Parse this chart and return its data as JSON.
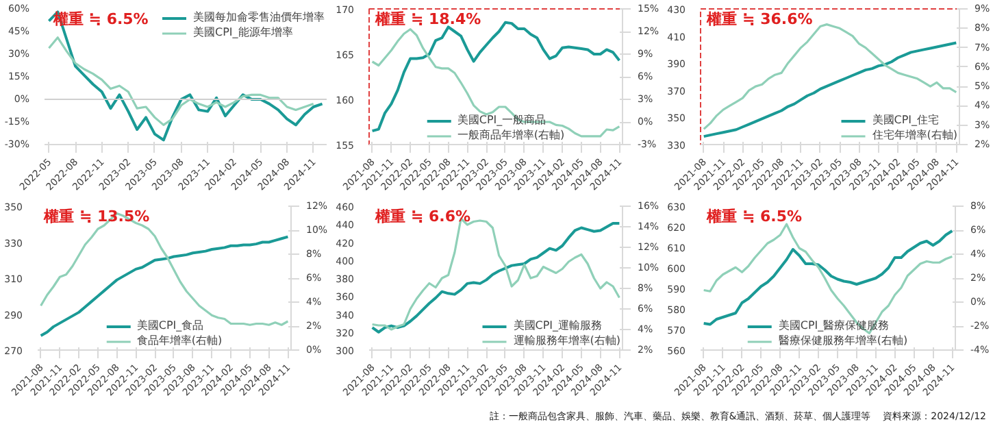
{
  "chart_data": [
    {
      "type": "line",
      "title": "權重 ≒ 6.5%",
      "categories": [
        "2022-05",
        null,
        null,
        "2022-08",
        null,
        null,
        "2022-11",
        null,
        null,
        "2023-02",
        null,
        null,
        "2023-05",
        null,
        null,
        "2023-08",
        null,
        null,
        "2023-11",
        null,
        null,
        "2024-02",
        null,
        null,
        "2024-05",
        null,
        null,
        "2024-08",
        null,
        null,
        "2024-11",
        null
      ],
      "series": [
        {
          "name": "美國每加侖零售油價年增率",
          "color": "#1a9a96",
          "values": [
            52,
            58,
            40,
            22,
            16,
            10,
            5,
            -6,
            3,
            -8,
            -20,
            -12,
            -23,
            -27,
            -12,
            0,
            3,
            -7,
            -8,
            1,
            -11,
            -4,
            3,
            0,
            0,
            -3,
            -7,
            -13,
            -17,
            -10,
            -5,
            -3
          ]
        },
        {
          "name": "美國CPI_能源年增率",
          "color": "#8fd0b8",
          "values": [
            34,
            41,
            32,
            24,
            20,
            17,
            13,
            7,
            9,
            5,
            -6,
            -5,
            -12,
            -17,
            -13,
            -4,
            0,
            -3,
            -5,
            -2,
            -5,
            -2,
            2,
            3,
            3,
            1,
            1,
            -5,
            -7,
            -5,
            -3,
            null
          ]
        }
      ],
      "ylim": [
        -30,
        60
      ],
      "yticks": [
        {
          "value": -30,
          "label": "-30%"
        },
        {
          "value": -15,
          "label": "-15%"
        },
        {
          "value": 0,
          "label": "0%"
        },
        {
          "value": 15,
          "label": "15%"
        },
        {
          "value": 30,
          "label": "30%"
        },
        {
          "value": 45,
          "label": "45%"
        },
        {
          "value": 60,
          "label": "60%"
        }
      ],
      "ref_lines": [
        {
          "axis": "y",
          "value": 0,
          "color": "#d0d0d0"
        }
      ],
      "legend": "top right"
    },
    {
      "type": "line",
      "title": "權重 ≒ 18.4%",
      "categories": [
        "2021-08",
        null,
        null,
        "2021-11",
        null,
        null,
        "2022-02",
        null,
        null,
        "2022-05",
        null,
        null,
        "2022-08",
        null,
        null,
        "2022-11",
        null,
        null,
        "2023-02",
        null,
        null,
        "2023-05",
        null,
        null,
        "2023-08",
        null,
        null,
        "2023-11",
        null,
        null,
        "2024-02",
        null,
        null,
        "2024-05",
        null,
        null,
        "2024-08",
        null,
        null,
        "2024-11"
      ],
      "series": [
        {
          "name": "美國CPI_一般商品",
          "color": "#1a9a96",
          "values": [
            156.5,
            156.7,
            158.5,
            159.5,
            161,
            163,
            164.5,
            164.5,
            164.6,
            165,
            166.5,
            166.8,
            168,
            167.5,
            167,
            165.5,
            164.2,
            165.2,
            166,
            166.8,
            167.5,
            168.5,
            168.4,
            167.8,
            167.8,
            167.2,
            166.8,
            165.5,
            164.5,
            164.8,
            165.7,
            165.8,
            165.7,
            165.6,
            165.5,
            165,
            165,
            165.5,
            165.2,
            164.3
          ]
        },
        {
          "name": "一般商品年增率(右軸)",
          "color": "#8fd0b8",
          "axis": "y2",
          "values": [
            8,
            7.5,
            8.5,
            9.5,
            10.7,
            11.7,
            12.3,
            11.5,
            9.8,
            8.5,
            7.3,
            7.1,
            7.1,
            6.5,
            5.2,
            3.8,
            2.2,
            1.4,
            1.0,
            1.3,
            2.0,
            2.0,
            1.2,
            0.3,
            0,
            0,
            0,
            0,
            0,
            -0.4,
            -0.5,
            -0.9,
            -1.5,
            -1.9,
            -1.9,
            -1.9,
            -1.9,
            -1,
            -1.1,
            -0.6
          ]
        }
      ],
      "ylim": [
        155,
        170
      ],
      "yticks": [
        155,
        160,
        165,
        170
      ],
      "y2lim": [
        -3,
        15
      ],
      "y2ticks": [
        {
          "value": -3,
          "label": "-3%"
        },
        {
          "value": 0,
          "label": "0%"
        },
        {
          "value": 3,
          "label": "3%"
        },
        {
          "value": 6,
          "label": "6%"
        },
        {
          "value": 9,
          "label": "9%"
        },
        {
          "value": 12,
          "label": "12%"
        },
        {
          "value": 15,
          "label": "15%"
        }
      ],
      "legend": "bottom"
    },
    {
      "type": "line",
      "title": "權重 ≒ 36.6%",
      "categories": [
        "2021-08",
        null,
        null,
        "2021-11",
        null,
        null,
        "2022-02",
        null,
        null,
        "2022-05",
        null,
        null,
        "2022-08",
        null,
        null,
        "2022-11",
        null,
        null,
        "2023-02",
        null,
        null,
        "2023-05",
        null,
        null,
        "2023-08",
        null,
        null,
        "2023-11",
        null,
        null,
        "2024-02",
        null,
        null,
        "2024-05",
        null,
        null,
        "2024-08",
        null,
        null,
        "2024-11"
      ],
      "series": [
        {
          "name": "美國CPI_住宅",
          "color": "#1a9a96",
          "values": [
            336,
            337,
            338,
            339,
            340,
            341,
            343,
            345,
            347,
            349,
            351,
            353,
            355,
            358,
            360,
            363,
            366,
            368,
            371,
            373,
            375,
            377,
            379,
            381,
            383,
            385,
            386,
            388,
            389,
            391,
            394,
            396,
            398,
            399,
            400,
            401,
            402,
            403,
            404,
            405
          ]
        },
        {
          "name": "住宅年增率(右軸)",
          "color": "#8fd0b8",
          "axis": "y2",
          "values": [
            2.8,
            3.1,
            3.5,
            3.8,
            4.0,
            4.2,
            4.4,
            4.8,
            5.0,
            5.1,
            5.4,
            5.6,
            5.7,
            6.2,
            6.6,
            7.0,
            7.3,
            7.7,
            8.1,
            8.2,
            8.1,
            8.0,
            7.8,
            7.6,
            7.2,
            7.0,
            6.7,
            6.4,
            6.1,
            5.9,
            5.7,
            5.6,
            5.5,
            5.4,
            5.2,
            5.0,
            5.2,
            4.9,
            4.9,
            4.7
          ]
        }
      ],
      "ylim": [
        330,
        430
      ],
      "yticks": [
        330,
        350,
        370,
        390,
        410,
        430
      ],
      "y2lim": [
        2,
        9
      ],
      "y2ticks": [
        {
          "value": 2,
          "label": "2%"
        },
        {
          "value": 3,
          "label": "3%"
        },
        {
          "value": 4,
          "label": "4%"
        },
        {
          "value": 5,
          "label": "5%"
        },
        {
          "value": 6,
          "label": "6%"
        },
        {
          "value": 7,
          "label": "7%"
        },
        {
          "value": 8,
          "label": "8%"
        },
        {
          "value": 9,
          "label": "9%"
        }
      ],
      "legend": "bottom right"
    },
    {
      "type": "line",
      "title": "權重 ≒ 13.5%",
      "categories": [
        "2021-08",
        null,
        null,
        "2021-11",
        null,
        null,
        "2022-02",
        null,
        null,
        "2022-05",
        null,
        null,
        "2022-08",
        null,
        null,
        "2022-11",
        null,
        null,
        "2023-02",
        null,
        null,
        "2023-05",
        null,
        null,
        "2023-08",
        null,
        null,
        "2023-11",
        null,
        null,
        "2024-02",
        null,
        null,
        "2024-05",
        null,
        null,
        "2024-08",
        null,
        null,
        "2024-11"
      ],
      "series": [
        {
          "name": "美國CPI_食品",
          "color": "#1a9a96",
          "values": [
            278,
            280,
            283,
            285,
            287,
            289,
            291,
            294,
            297,
            300,
            303,
            306,
            309,
            311,
            313,
            315,
            316,
            318,
            320,
            320.5,
            321,
            322,
            322.5,
            323,
            324,
            324.5,
            325,
            326,
            326.5,
            327,
            328,
            328,
            328.5,
            328.5,
            329,
            330,
            330,
            331,
            332,
            333
          ]
        },
        {
          "name": "食品年增率(右軸)",
          "color": "#8fd0b8",
          "axis": "y2",
          "values": [
            3.7,
            4.6,
            5.3,
            6.1,
            6.3,
            7.0,
            7.9,
            8.8,
            9.4,
            10.1,
            10.4,
            10.9,
            11.4,
            11.2,
            10.9,
            10.6,
            10.4,
            10.1,
            9.5,
            8.5,
            7.7,
            6.7,
            5.7,
            4.9,
            4.3,
            3.7,
            3.3,
            2.9,
            2.7,
            2.6,
            2.2,
            2.2,
            2.2,
            2.1,
            2.2,
            2.2,
            2.1,
            2.3,
            2.1,
            2.4
          ]
        }
      ],
      "ylim": [
        270,
        350
      ],
      "yticks": [
        270,
        290,
        310,
        330,
        350
      ],
      "y2lim": [
        0,
        12
      ],
      "y2ticks": [
        {
          "value": 0,
          "label": "0%"
        },
        {
          "value": 2,
          "label": "2%"
        },
        {
          "value": 4,
          "label": "4%"
        },
        {
          "value": 6,
          "label": "6%"
        },
        {
          "value": 8,
          "label": "8%"
        },
        {
          "value": 10,
          "label": "10%"
        },
        {
          "value": 12,
          "label": "12%"
        }
      ],
      "legend": "bottom"
    },
    {
      "type": "line",
      "title": "權重 ≒ 6.6%",
      "categories": [
        "2021-08",
        null,
        null,
        "2021-11",
        null,
        null,
        "2022-02",
        null,
        null,
        "2022-05",
        null,
        null,
        "2022-08",
        null,
        null,
        "2022-11",
        null,
        null,
        "2023-02",
        null,
        null,
        "2023-05",
        null,
        null,
        "2023-08",
        null,
        null,
        "2023-11",
        null,
        null,
        "2024-02",
        null,
        null,
        "2024-05",
        null,
        null,
        "2024-08",
        null,
        null,
        "2024-11"
      ],
      "series": [
        {
          "name": "美國CPI_運輸服務",
          "color": "#1a9a96",
          "values": [
            325,
            320,
            325,
            327,
            325,
            327,
            332,
            338,
            345,
            352,
            358,
            365,
            363,
            362,
            367,
            374,
            375,
            374,
            378,
            384,
            388,
            391,
            394,
            395,
            396,
            401,
            403,
            408,
            413,
            411,
            416,
            425,
            433,
            436,
            434,
            432,
            433,
            437,
            441,
            441
          ]
        },
        {
          "name": "運輸服務年增率(右軸)",
          "color": "#8fd0b8",
          "axis": "y2",
          "values": [
            4.5,
            4.4,
            4.4,
            4.0,
            4.3,
            4.5,
            6.0,
            7.0,
            7.8,
            8.5,
            8.1,
            9.0,
            9.3,
            11.5,
            14.8,
            14.2,
            14.5,
            14.6,
            14.5,
            13.9,
            11.2,
            10.2,
            8.2,
            8.8,
            10.3,
            9.0,
            9.2,
            10.1,
            9.8,
            9.5,
            9.9,
            10.6,
            11.0,
            11.3,
            10.4,
            9.0,
            8.0,
            8.6,
            8.2,
            7.1
          ]
        }
      ],
      "ylim": [
        300,
        460
      ],
      "yticks": [
        300,
        320,
        340,
        360,
        380,
        400,
        420,
        440,
        460
      ],
      "y2lim": [
        2,
        16
      ],
      "y2ticks": [
        {
          "value": 2,
          "label": "2%"
        },
        {
          "value": 4,
          "label": "4%"
        },
        {
          "value": 6,
          "label": "6%"
        },
        {
          "value": 8,
          "label": "8%"
        },
        {
          "value": 10,
          "label": "10%"
        },
        {
          "value": 12,
          "label": "12%"
        },
        {
          "value": 14,
          "label": "14%"
        },
        {
          "value": 16,
          "label": "16%"
        }
      ],
      "legend": "bottom right"
    },
    {
      "type": "line",
      "title": "權重 ≒ 6.5%",
      "categories": [
        "2021-08",
        null,
        null,
        "2021-11",
        null,
        null,
        "2022-02",
        null,
        null,
        "2022-05",
        null,
        null,
        "2022-08",
        null,
        null,
        "2022-11",
        null,
        null,
        "2023-02",
        null,
        null,
        "2023-05",
        null,
        null,
        "2023-08",
        null,
        null,
        "2023-11",
        null,
        null,
        "2024-02",
        null,
        null,
        "2024-05",
        null,
        null,
        "2024-08",
        null,
        null,
        "2024-11"
      ],
      "series": [
        {
          "name": "美國CPI_醫療保健服務",
          "color": "#1a9a96",
          "values": [
            573,
            572.5,
            575,
            576,
            577,
            578,
            583,
            585,
            588,
            591,
            593,
            596,
            600,
            604,
            609,
            606,
            602,
            602,
            601.5,
            599,
            596,
            594.5,
            593.5,
            593,
            592,
            593,
            594,
            595,
            597,
            600,
            605,
            605,
            608,
            610,
            612,
            613,
            611,
            613,
            616,
            618
          ]
        },
        {
          "name": "醫療保健服務年增率(右軸)",
          "color": "#8fd0b8",
          "axis": "y2",
          "values": [
            1.0,
            0.9,
            1.8,
            2.3,
            2.6,
            2.9,
            2.5,
            3.0,
            3.7,
            4.3,
            4.9,
            5.2,
            5.6,
            6.5,
            5.4,
            4.5,
            4.2,
            3.5,
            2.9,
            2.0,
            1.0,
            0.3,
            -0.3,
            -1.0,
            -1.7,
            -2.2,
            -2.6,
            -1.7,
            -0.8,
            -0.3,
            0.6,
            1.2,
            2.2,
            2.7,
            3.2,
            3.4,
            3.3,
            3.3,
            3.6,
            3.8
          ]
        }
      ],
      "ylim": [
        560,
        630
      ],
      "yticks": [
        560,
        570,
        580,
        590,
        600,
        610,
        620,
        630
      ],
      "y2lim": [
        -4,
        8
      ],
      "y2ticks": [
        {
          "value": -4,
          "label": "-4%"
        },
        {
          "value": -2,
          "label": "-2%"
        },
        {
          "value": 0,
          "label": "0%"
        },
        {
          "value": 2,
          "label": "2%"
        },
        {
          "value": 4,
          "label": "4%"
        },
        {
          "value": 6,
          "label": "6%"
        },
        {
          "value": 8,
          "label": "8%"
        }
      ],
      "legend": "bottom",
      "annotations": [
        "註：一般商品包含家具、服飾、汽車、藥品、娛樂、教育&通訊、酒類、菸草、個人護理等",
        "資料來源：2024/12/12"
      ]
    }
  ]
}
